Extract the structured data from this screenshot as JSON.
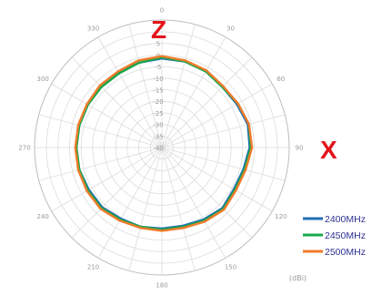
{
  "chart_data": {
    "type": "polar-line",
    "angle_ticks": [
      "0",
      "30",
      "60",
      "90",
      "120",
      "150",
      "180",
      "210",
      "240",
      "270",
      "300",
      "330"
    ],
    "radial_ticks": [
      "5",
      "0",
      "-5",
      "-10",
      "-15",
      "-20",
      "-25",
      "-30",
      "-35",
      "-40"
    ],
    "r_range": [
      -40,
      10
    ],
    "unit_label": "(dBi)",
    "axis_labels": {
      "top": "Z",
      "right": "X"
    },
    "legend_position": "bottom-right",
    "angles": [
      0,
      15,
      30,
      45,
      60,
      75,
      90,
      105,
      120,
      135,
      150,
      165,
      180,
      195,
      210,
      225,
      240,
      255,
      270,
      285,
      300,
      315,
      330,
      345
    ],
    "series": [
      {
        "name": "2400MHz",
        "color": "#1f6fb0",
        "values": [
          -1.5,
          -1.5,
          -2.0,
          -3.0,
          -2.5,
          -1.5,
          -2.0,
          -3.5,
          -4.0,
          -3.0,
          -4.0,
          -5.0,
          -5.0,
          -4.5,
          -4.5,
          -3.5,
          -3.5,
          -3.0,
          -3.0,
          -3.0,
          -3.0,
          -2.5,
          -2.5,
          -2.0
        ]
      },
      {
        "name": "2450MHz",
        "color": "#1aa84a",
        "values": [
          -1.0,
          -1.5,
          -2.0,
          -3.0,
          -2.0,
          -1.0,
          -1.5,
          -3.0,
          -3.5,
          -2.5,
          -3.5,
          -4.5,
          -4.5,
          -4.5,
          -4.0,
          -3.0,
          -3.0,
          -3.0,
          -3.0,
          -3.0,
          -3.0,
          -3.0,
          -3.0,
          -2.0
        ]
      },
      {
        "name": "2500MHz",
        "color": "#f07b2a",
        "values": [
          -0.5,
          -1.0,
          -1.5,
          -2.5,
          -2.0,
          -1.0,
          -1.0,
          -2.5,
          -3.0,
          -2.0,
          -3.0,
          -4.0,
          -4.0,
          -4.0,
          -3.5,
          -2.5,
          -2.5,
          -2.5,
          -2.5,
          -2.5,
          -2.5,
          -2.0,
          -2.0,
          -1.0
        ]
      }
    ]
  }
}
